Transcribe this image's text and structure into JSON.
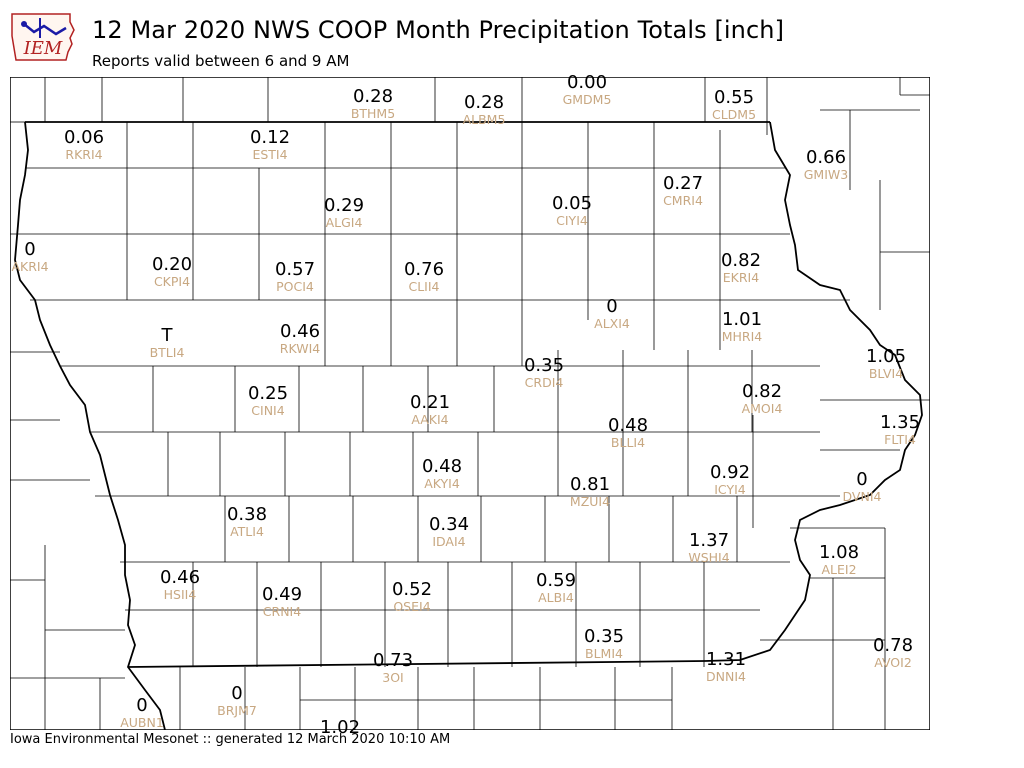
{
  "header": {
    "logo_text": "IEM",
    "title": "12 Mar 2020 NWS COOP Month Precipitation Totals [inch]",
    "subtitle": "Reports valid between 6 and 9 AM"
  },
  "footer": {
    "credit": "Iowa Environmental Mesonet :: generated 12 March 2020 10:10 AM"
  },
  "colors": {
    "value_text": "#000000",
    "station_text": "#c8a882",
    "county_lines": "#000000",
    "logo_red": "#b22222",
    "logo_blue": "#1a1aa6"
  },
  "stations": [
    {
      "id": "BTHM5",
      "value": "0.28"
    },
    {
      "id": "ALBM5",
      "value": "0.28"
    },
    {
      "id": "GMDM5",
      "value": "0.00"
    },
    {
      "id": "CLDM5",
      "value": "0.55"
    },
    {
      "id": "RKRI4",
      "value": "0.06"
    },
    {
      "id": "ESTI4",
      "value": "0.12"
    },
    {
      "id": "GMIW3",
      "value": "0.66"
    },
    {
      "id": "ALGI4",
      "value": "0.29"
    },
    {
      "id": "CIYI4",
      "value": "0.05"
    },
    {
      "id": "CMRI4",
      "value": "0.27"
    },
    {
      "id": "AKRI4",
      "value": "0"
    },
    {
      "id": "CKPI4",
      "value": "0.20"
    },
    {
      "id": "POCI4",
      "value": "0.57"
    },
    {
      "id": "CLII4",
      "value": "0.76"
    },
    {
      "id": "EKRI4",
      "value": "0.82"
    },
    {
      "id": "ALXI4",
      "value": "0"
    },
    {
      "id": "MHRI4",
      "value": "1.01"
    },
    {
      "id": "BTLI4",
      "value": "T"
    },
    {
      "id": "RKWI4",
      "value": "0.46"
    },
    {
      "id": "BLVI4",
      "value": "1.05"
    },
    {
      "id": "CRDI4",
      "value": "0.35"
    },
    {
      "id": "CINI4",
      "value": "0.25"
    },
    {
      "id": "AMOI4",
      "value": "0.82"
    },
    {
      "id": "AAKI4",
      "value": "0.21"
    },
    {
      "id": "FLTI4",
      "value": "1.35"
    },
    {
      "id": "BLLI4",
      "value": "0.48"
    },
    {
      "id": "AKYI4",
      "value": "0.48"
    },
    {
      "id": "ICYI4",
      "value": "0.92"
    },
    {
      "id": "MZUI4",
      "value": "0.81"
    },
    {
      "id": "DVNI4",
      "value": "0"
    },
    {
      "id": "ATLI4",
      "value": "0.38"
    },
    {
      "id": "IDAI4",
      "value": "0.34"
    },
    {
      "id": "WSHI4",
      "value": "1.37"
    },
    {
      "id": "ALEI2",
      "value": "1.08"
    },
    {
      "id": "HSII4",
      "value": "0.46"
    },
    {
      "id": "CRNI4",
      "value": "0.49"
    },
    {
      "id": "OSEI4",
      "value": "0.52"
    },
    {
      "id": "ALBI4",
      "value": "0.59"
    },
    {
      "id": "BLMI4",
      "value": "0.35"
    },
    {
      "id": "AVOI2",
      "value": "0.78"
    },
    {
      "id": "3OI",
      "value": "0.73"
    },
    {
      "id": "DNNI4",
      "value": "1.31"
    },
    {
      "id": "AUBN1",
      "value": "0"
    },
    {
      "id": "BRJM7",
      "value": "0"
    },
    {
      "id": "",
      "value": "1.02"
    }
  ]
}
